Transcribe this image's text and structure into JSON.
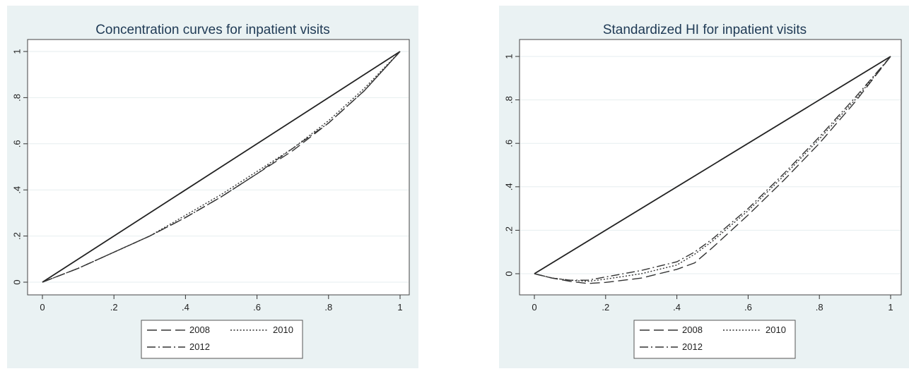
{
  "chart_data": [
    {
      "type": "line",
      "title": "Concentration curves for inpatient visits",
      "xlabel": "",
      "ylabel": "",
      "xlim": [
        0,
        1
      ],
      "ylim": [
        0,
        1
      ],
      "xticks": [
        "0",
        ".2",
        ".4",
        ".6",
        ".8",
        "1"
      ],
      "yticks": [
        "0",
        ".2",
        ".4",
        ".6",
        ".8",
        "1"
      ],
      "grid": true,
      "legend_position": "bottom",
      "line_of_equality": {
        "x": [
          0,
          1
        ],
        "y": [
          0,
          1
        ],
        "style": "solid"
      },
      "series": [
        {
          "name": "2008",
          "style": "dash",
          "x": [
            0,
            0.1,
            0.2,
            0.3,
            0.4,
            0.5,
            0.6,
            0.7,
            0.8,
            0.9,
            1
          ],
          "y": [
            0,
            0.06,
            0.13,
            0.2,
            0.28,
            0.37,
            0.47,
            0.57,
            0.69,
            0.83,
            1
          ]
        },
        {
          "name": "2010",
          "style": "dot",
          "x": [
            0,
            0.1,
            0.2,
            0.3,
            0.4,
            0.5,
            0.6,
            0.7,
            0.8,
            0.9,
            1
          ],
          "y": [
            0,
            0.06,
            0.13,
            0.2,
            0.29,
            0.38,
            0.48,
            0.58,
            0.7,
            0.84,
            1
          ]
        },
        {
          "name": "2012",
          "style": "dashdot",
          "x": [
            0,
            0.1,
            0.2,
            0.3,
            0.4,
            0.5,
            0.6,
            0.7,
            0.8,
            0.9,
            1
          ],
          "y": [
            0,
            0.06,
            0.13,
            0.2,
            0.28,
            0.37,
            0.47,
            0.58,
            0.69,
            0.83,
            1
          ]
        }
      ]
    },
    {
      "type": "line",
      "title": "Standardized HI for inpatient visits",
      "xlabel": "",
      "ylabel": "",
      "xlim": [
        0,
        1
      ],
      "ylim": [
        -0.08,
        1
      ],
      "xticks": [
        "0",
        ".2",
        ".4",
        ".6",
        ".8",
        "1"
      ],
      "yticks": [
        "0",
        ".2",
        ".4",
        ".6",
        ".8",
        "1"
      ],
      "grid": true,
      "legend_position": "bottom",
      "line_of_equality": {
        "x": [
          0,
          1
        ],
        "y": [
          0,
          1
        ],
        "style": "solid"
      },
      "series": [
        {
          "name": "2008",
          "style": "dash",
          "x": [
            0,
            0.05,
            0.1,
            0.15,
            0.2,
            0.3,
            0.4,
            0.45,
            0.5,
            0.6,
            0.7,
            0.8,
            0.9,
            1
          ],
          "y": [
            0,
            -0.02,
            -0.035,
            -0.045,
            -0.04,
            -0.02,
            0.02,
            0.05,
            0.12,
            0.27,
            0.43,
            0.6,
            0.79,
            1
          ]
        },
        {
          "name": "2010",
          "style": "dot",
          "x": [
            0,
            0.05,
            0.1,
            0.15,
            0.2,
            0.3,
            0.4,
            0.45,
            0.5,
            0.6,
            0.7,
            0.8,
            0.9,
            1
          ],
          "y": [
            0,
            -0.02,
            -0.03,
            -0.035,
            -0.025,
            0,
            0.04,
            0.09,
            0.15,
            0.29,
            0.45,
            0.62,
            0.8,
            1
          ]
        },
        {
          "name": "2012",
          "style": "dashdot",
          "x": [
            0,
            0.05,
            0.1,
            0.15,
            0.2,
            0.3,
            0.4,
            0.45,
            0.5,
            0.6,
            0.7,
            0.8,
            0.9,
            1
          ],
          "y": [
            0,
            -0.02,
            -0.03,
            -0.03,
            -0.015,
            0.015,
            0.055,
            0.1,
            0.16,
            0.3,
            0.46,
            0.63,
            0.81,
            1
          ]
        }
      ]
    }
  ]
}
